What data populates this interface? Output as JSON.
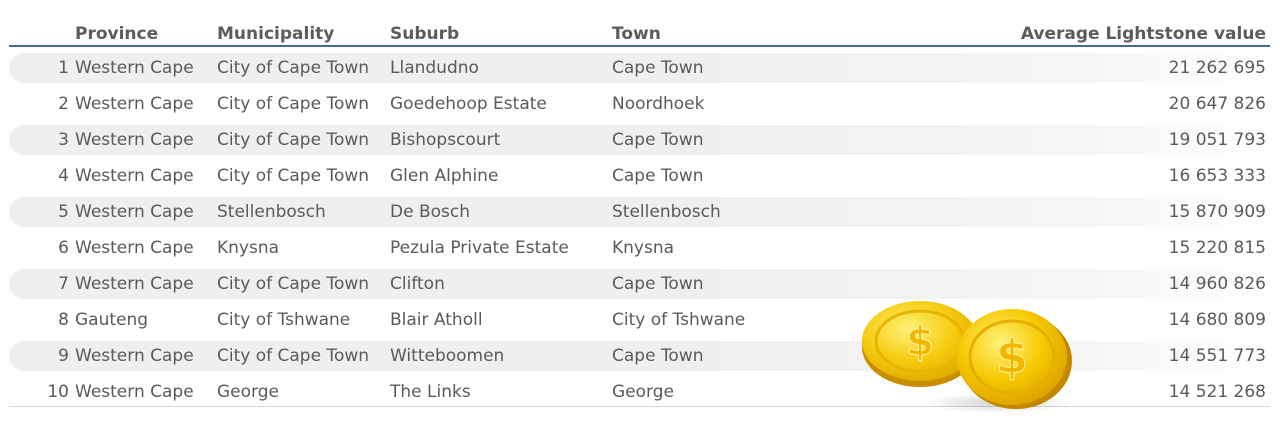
{
  "table": {
    "headers": {
      "province": "Province",
      "municipality": "Municipality",
      "suburb": "Suburb",
      "town": "Town",
      "value": "Average Lightstone value"
    },
    "rows": [
      {
        "rank": "1",
        "province": "Western Cape",
        "municipality": "City of Cape Town",
        "suburb": "Llandudno",
        "town": "Cape Town",
        "value": "21 262 695"
      },
      {
        "rank": "2",
        "province": "Western Cape",
        "municipality": "City of Cape Town",
        "suburb": "Goedehoop Estate",
        "town": "Noordhoek",
        "value": "20 647 826"
      },
      {
        "rank": "3",
        "province": "Western Cape",
        "municipality": "City of Cape Town",
        "suburb": "Bishopscourt",
        "town": "Cape Town",
        "value": "19 051 793"
      },
      {
        "rank": "4",
        "province": "Western Cape",
        "municipality": "City of Cape Town",
        "suburb": "Glen Alphine",
        "town": "Cape Town",
        "value": "16 653 333"
      },
      {
        "rank": "5",
        "province": "Western Cape",
        "municipality": "Stellenbosch",
        "suburb": "De Bosch",
        "town": "Stellenbosch",
        "value": "15 870 909"
      },
      {
        "rank": "6",
        "province": "Western Cape",
        "municipality": "Knysna",
        "suburb": "Pezula Private Estate",
        "town": "Knysna",
        "value": "15 220 815"
      },
      {
        "rank": "7",
        "province": "Western Cape",
        "municipality": "City of Cape Town",
        "suburb": "Clifton",
        "town": "Cape Town",
        "value": "14 960 826"
      },
      {
        "rank": "8",
        "province": "Gauteng",
        "municipality": "City of Tshwane",
        "suburb": "Blair Atholl",
        "town": "City of Tshwane",
        "value": "14 680 809"
      },
      {
        "rank": "9",
        "province": "Western Cape",
        "municipality": "City of Cape Town",
        "suburb": "Witteboomen",
        "town": "Cape Town",
        "value": "14 551 773"
      },
      {
        "rank": "10",
        "province": "Western Cape",
        "municipality": "George",
        "suburb": "The Links",
        "town": "George",
        "value": "14 521 268"
      }
    ]
  },
  "colors": {
    "header_rule": "#4a6a95",
    "row_shade": "#efefef",
    "coin_gold": "#f2c200"
  },
  "decoration": {
    "icon": "gold-coins-icon"
  }
}
